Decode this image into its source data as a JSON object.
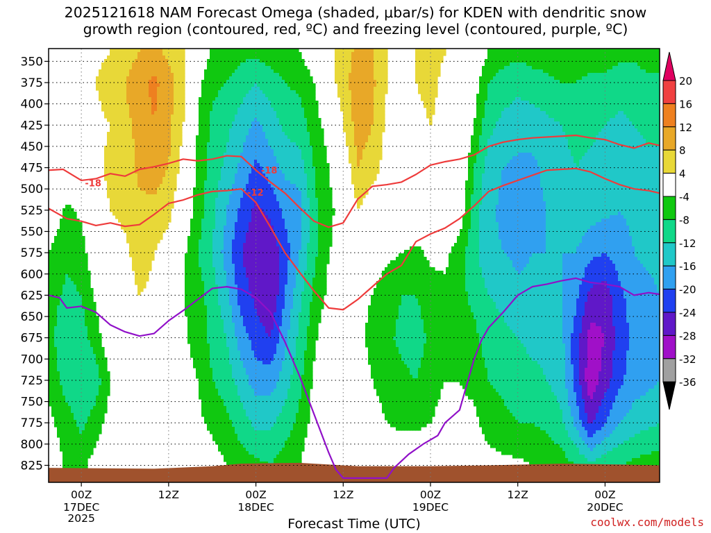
{
  "chart_data": {
    "type": "heatmap",
    "title_line1": "2025121618 NAM Forecast Omega (shaded, μbar/s) for KDEN with dendritic snow",
    "title_line2": "growth region (contoured, red, ºC) and freezing level (contoured, purple, ºC)",
    "xlabel": "Forecast Time (UTC)",
    "credit": "coolwx.com/models",
    "xlim_hours": [
      -4.5,
      79.5
    ],
    "ylim_hPa": [
      335,
      845
    ],
    "yticks": [
      350,
      375,
      400,
      425,
      450,
      475,
      500,
      525,
      550,
      575,
      600,
      625,
      650,
      675,
      700,
      725,
      750,
      775,
      800,
      825
    ],
    "xticks": [
      {
        "hour": 0,
        "line1": "00Z",
        "line2": "17DEC",
        "line3": "2025"
      },
      {
        "hour": 12,
        "line1": "12Z",
        "line2": "",
        "line3": ""
      },
      {
        "hour": 24,
        "line1": "00Z",
        "line2": "18DEC",
        "line3": ""
      },
      {
        "hour": 36,
        "line1": "12Z",
        "line2": "",
        "line3": ""
      },
      {
        "hour": 48,
        "line1": "00Z",
        "line2": "19DEC",
        "line3": ""
      },
      {
        "hour": 60,
        "line1": "12Z",
        "line2": "",
        "line3": ""
      },
      {
        "hour": 72,
        "line1": "00Z",
        "line2": "20DEC",
        "line3": ""
      }
    ],
    "colorbar": {
      "labels": [
        "20",
        "16",
        "12",
        "8",
        "4",
        "-4",
        "-8",
        "-12",
        "-16",
        "-20",
        "-24",
        "-28",
        "-32",
        "-36"
      ],
      "colors": [
        "#e00060",
        "#f04040",
        "#ee8020",
        "#e8a828",
        "#e8d838",
        "#ffffff",
        "#10c810",
        "#10d888",
        "#20c8c8",
        "#30a0f0",
        "#2040f0",
        "#6018c8",
        "#a010c8",
        "#a0a0a0",
        "#000000"
      ]
    },
    "omega_hours": [
      -4.5,
      -2,
      0,
      2,
      4,
      6,
      8,
      10,
      12,
      14,
      16,
      18,
      20,
      22,
      24,
      26,
      28,
      30,
      32,
      34,
      36,
      38,
      40,
      42,
      44,
      46,
      48,
      50,
      52,
      54,
      56,
      58,
      60,
      62,
      64,
      66,
      68,
      70,
      72,
      74,
      76,
      78,
      79.5
    ],
    "omega_levels": [
      340,
      375,
      425,
      475,
      525,
      575,
      625,
      675,
      725,
      775,
      825
    ],
    "omega_values": [
      [
        3,
        3,
        3,
        3,
        0,
        -4,
        -6,
        -6,
        -5,
        -3,
        0
      ],
      [
        4,
        3,
        3,
        2,
        -5,
        -7,
        -9,
        -12,
        -10,
        -6,
        -5
      ],
      [
        3,
        3,
        2,
        1,
        -3,
        -6,
        -8,
        -10,
        -12,
        -9,
        -5
      ],
      [
        3,
        4,
        3,
        3,
        2,
        0,
        -3,
        -6,
        -10,
        -6,
        -2
      ],
      [
        4,
        6,
        4,
        5,
        4,
        2,
        1,
        0,
        -4,
        -2,
        0
      ],
      [
        6,
        8,
        7,
        6,
        5,
        3,
        2,
        1,
        0,
        0,
        0
      ],
      [
        8,
        11,
        9,
        9,
        7,
        6,
        4,
        3,
        2,
        1,
        0
      ],
      [
        9,
        13,
        12,
        10,
        7,
        4,
        3,
        2,
        1,
        0,
        0
      ],
      [
        7,
        10,
        9,
        8,
        5,
        2,
        1,
        0,
        0,
        0,
        0
      ],
      [
        5,
        5,
        4,
        2,
        0,
        -3,
        -4,
        -3,
        -2,
        0,
        0
      ],
      [
        0,
        -3,
        -4,
        -5,
        -6,
        -8,
        -6,
        -6,
        -4,
        -3,
        0
      ],
      [
        -5,
        -7,
        -9,
        -10,
        -11,
        -12,
        -10,
        -9,
        -8,
        -5,
        -2
      ],
      [
        -6,
        -8,
        -11,
        -13,
        -16,
        -18,
        -15,
        -12,
        -10,
        -7,
        -4
      ],
      [
        -7,
        -10,
        -14,
        -17,
        -21,
        -24,
        -22,
        -18,
        -14,
        -10,
        -6
      ],
      [
        -7,
        -12,
        -17,
        -21,
        -25,
        -27,
        -25,
        -22,
        -18,
        -13,
        -7
      ],
      [
        -6,
        -10,
        -14,
        -18,
        -23,
        -27,
        -28,
        -24,
        -18,
        -13,
        -8
      ],
      [
        -5,
        -8,
        -11,
        -15,
        -19,
        -22,
        -20,
        -17,
        -14,
        -10,
        -6
      ],
      [
        -4,
        -7,
        -10,
        -14,
        -18,
        -16,
        -13,
        -11,
        -9,
        -7,
        -4
      ],
      [
        -1,
        -4,
        -6,
        -8,
        -9,
        -9,
        -7,
        -5,
        -3,
        -2,
        0
      ],
      [
        3,
        2,
        -2,
        -4,
        -5,
        -4,
        -3,
        0,
        0,
        0,
        0
      ],
      [
        6,
        6,
        4,
        0,
        -2,
        -3,
        -3,
        -2,
        0,
        0,
        0
      ],
      [
        9,
        11,
        10,
        8,
        4,
        0,
        -3,
        -3,
        -2,
        0,
        0
      ],
      [
        8,
        9,
        8,
        6,
        1,
        -2,
        -4,
        -5,
        -4,
        -2,
        0
      ],
      [
        4,
        4,
        3,
        2,
        0,
        -3,
        -6,
        -7,
        -6,
        -4,
        0
      ],
      [
        3,
        3,
        2,
        1,
        0,
        -4,
        -8,
        -9,
        -7,
        -5,
        0
      ],
      [
        4,
        4,
        3,
        2,
        0,
        -5,
        -8,
        -10,
        -8,
        -5,
        0
      ],
      [
        5,
        5,
        4,
        3,
        0,
        -3,
        -6,
        -7,
        -6,
        -4,
        0
      ],
      [
        4,
        3,
        3,
        2,
        0,
        -3,
        -5,
        -5,
        -4,
        -2,
        0
      ],
      [
        3,
        2,
        2,
        1,
        -1,
        -6,
        -7,
        -6,
        -4,
        -3,
        0
      ],
      [
        0,
        -2,
        -4,
        -8,
        -10,
        -11,
        -9,
        -7,
        -5,
        -3,
        0
      ],
      [
        -4,
        -8,
        -11,
        -14,
        -15,
        -15,
        -12,
        -10,
        -8,
        -6,
        -2
      ],
      [
        -6,
        -10,
        -13,
        -16,
        -17,
        -16,
        -13,
        -11,
        -9,
        -7,
        -3
      ],
      [
        -7,
        -11,
        -14,
        -17,
        -18,
        -17,
        -15,
        -12,
        -10,
        -8,
        -3
      ],
      [
        -6,
        -10,
        -14,
        -17,
        -17,
        -16,
        -15,
        -13,
        -11,
        -8,
        -4
      ],
      [
        -6,
        -9,
        -13,
        -15,
        -16,
        -16,
        -15,
        -13,
        -12,
        -9,
        -5
      ],
      [
        -5,
        -8,
        -12,
        -14,
        -15,
        -16,
        -16,
        -15,
        -14,
        -11,
        -6
      ],
      [
        -5,
        -8,
        -10,
        -12,
        -13,
        -16,
        -19,
        -22,
        -22,
        -17,
        -8
      ],
      [
        -6,
        -9,
        -11,
        -13,
        -14,
        -19,
        -25,
        -30,
        -31,
        -25,
        -11
      ],
      [
        -6,
        -9,
        -12,
        -14,
        -15,
        -20,
        -26,
        -28,
        -26,
        -20,
        -9
      ],
      [
        -7,
        -10,
        -13,
        -15,
        -16,
        -18,
        -21,
        -22,
        -21,
        -16,
        -8
      ],
      [
        -7,
        -10,
        -12,
        -14,
        -15,
        -16,
        -18,
        -19,
        -18,
        -14,
        -7
      ],
      [
        -6,
        -9,
        -11,
        -13,
        -14,
        -15,
        -17,
        -18,
        -17,
        -13,
        -6
      ],
      [
        -6,
        -9,
        -11,
        -13,
        -14,
        -15,
        -16,
        -17,
        -16,
        -12,
        -6
      ]
    ],
    "dgz_minus18": [
      [
        -4.5,
        478
      ],
      [
        -2.5,
        477
      ],
      [
        0,
        490
      ],
      [
        2,
        488
      ],
      [
        4,
        482
      ],
      [
        6,
        485
      ],
      [
        8,
        477
      ],
      [
        10,
        474
      ],
      [
        12,
        470
      ],
      [
        14,
        465
      ],
      [
        16,
        467
      ],
      [
        18,
        465
      ],
      [
        20,
        461
      ],
      [
        22,
        462
      ],
      [
        24,
        478
      ],
      [
        26,
        492
      ],
      [
        28,
        505
      ],
      [
        30,
        522
      ],
      [
        32,
        538
      ],
      [
        34,
        545
      ],
      [
        36,
        540
      ],
      [
        38,
        512
      ],
      [
        40,
        497
      ],
      [
        42,
        495
      ],
      [
        44,
        492
      ],
      [
        46,
        483
      ],
      [
        48,
        472
      ],
      [
        50,
        468
      ],
      [
        52,
        465
      ],
      [
        54,
        460
      ],
      [
        56,
        450
      ],
      [
        58,
        445
      ],
      [
        60,
        442
      ],
      [
        62,
        440
      ],
      [
        64,
        439
      ],
      [
        66,
        438
      ],
      [
        68,
        437
      ],
      [
        70,
        440
      ],
      [
        72,
        442
      ],
      [
        74,
        448
      ],
      [
        76,
        452
      ],
      [
        78,
        446
      ],
      [
        79.5,
        449
      ]
    ],
    "dgz_minus12": [
      [
        -4.5,
        523
      ],
      [
        -2,
        535
      ],
      [
        0,
        538
      ],
      [
        2,
        543
      ],
      [
        4,
        540
      ],
      [
        6,
        544
      ],
      [
        8,
        542
      ],
      [
        10,
        530
      ],
      [
        12,
        517
      ],
      [
        14,
        513
      ],
      [
        16,
        507
      ],
      [
        18,
        503
      ],
      [
        20,
        502
      ],
      [
        22,
        500
      ],
      [
        24,
        516
      ],
      [
        26,
        545
      ],
      [
        28,
        575
      ],
      [
        30,
        598
      ],
      [
        32,
        620
      ],
      [
        34,
        640
      ],
      [
        36,
        642
      ],
      [
        38,
        630
      ],
      [
        40,
        615
      ],
      [
        42,
        600
      ],
      [
        44,
        590
      ],
      [
        46,
        562
      ],
      [
        48,
        553
      ],
      [
        50,
        546
      ],
      [
        52,
        535
      ],
      [
        54,
        520
      ],
      [
        56,
        503
      ],
      [
        58,
        496
      ],
      [
        60,
        490
      ],
      [
        62,
        484
      ],
      [
        64,
        478
      ],
      [
        66,
        477
      ],
      [
        68,
        476
      ],
      [
        70,
        480
      ],
      [
        72,
        488
      ],
      [
        74,
        495
      ],
      [
        76,
        500
      ],
      [
        78,
        502
      ],
      [
        79.5,
        505
      ]
    ],
    "freezing_level": [
      [
        -4.5,
        625
      ],
      [
        -3,
        628
      ],
      [
        -2,
        640
      ],
      [
        0,
        638
      ],
      [
        2,
        645
      ],
      [
        4,
        660
      ],
      [
        6,
        668
      ],
      [
        8,
        673
      ],
      [
        10,
        670
      ],
      [
        12,
        655
      ],
      [
        14,
        643
      ],
      [
        16,
        630
      ],
      [
        18,
        617
      ],
      [
        20,
        615
      ],
      [
        22,
        618
      ],
      [
        24,
        628
      ],
      [
        26,
        645
      ],
      [
        28,
        680
      ],
      [
        30,
        720
      ],
      [
        32,
        765
      ],
      [
        34,
        810
      ],
      [
        35,
        830
      ],
      [
        36,
        840
      ],
      [
        42,
        840
      ],
      [
        43,
        828
      ],
      [
        45,
        812
      ],
      [
        47,
        800
      ],
      [
        49,
        790
      ],
      [
        50,
        775
      ],
      [
        52,
        760
      ],
      [
        53,
        730
      ],
      [
        54,
        700
      ],
      [
        55,
        678
      ],
      [
        56,
        663
      ],
      [
        58,
        645
      ],
      [
        60,
        625
      ],
      [
        62,
        615
      ],
      [
        64,
        612
      ],
      [
        66,
        608
      ],
      [
        68,
        605
      ],
      [
        70,
        610
      ],
      [
        72,
        612
      ],
      [
        74,
        615
      ],
      [
        76,
        625
      ],
      [
        78,
        622
      ],
      [
        79.5,
        624
      ]
    ],
    "label_minus18": "-18",
    "label_minus12": "-12",
    "labels": [
      {
        "text": "-18",
        "hour": 0.5,
        "hPa": 493
      },
      {
        "text": "-18",
        "hour": 24.7,
        "hPa": 478
      },
      {
        "text": "-12",
        "hour": 22.8,
        "hPa": 504
      }
    ],
    "ground_color": "#a0522d"
  }
}
